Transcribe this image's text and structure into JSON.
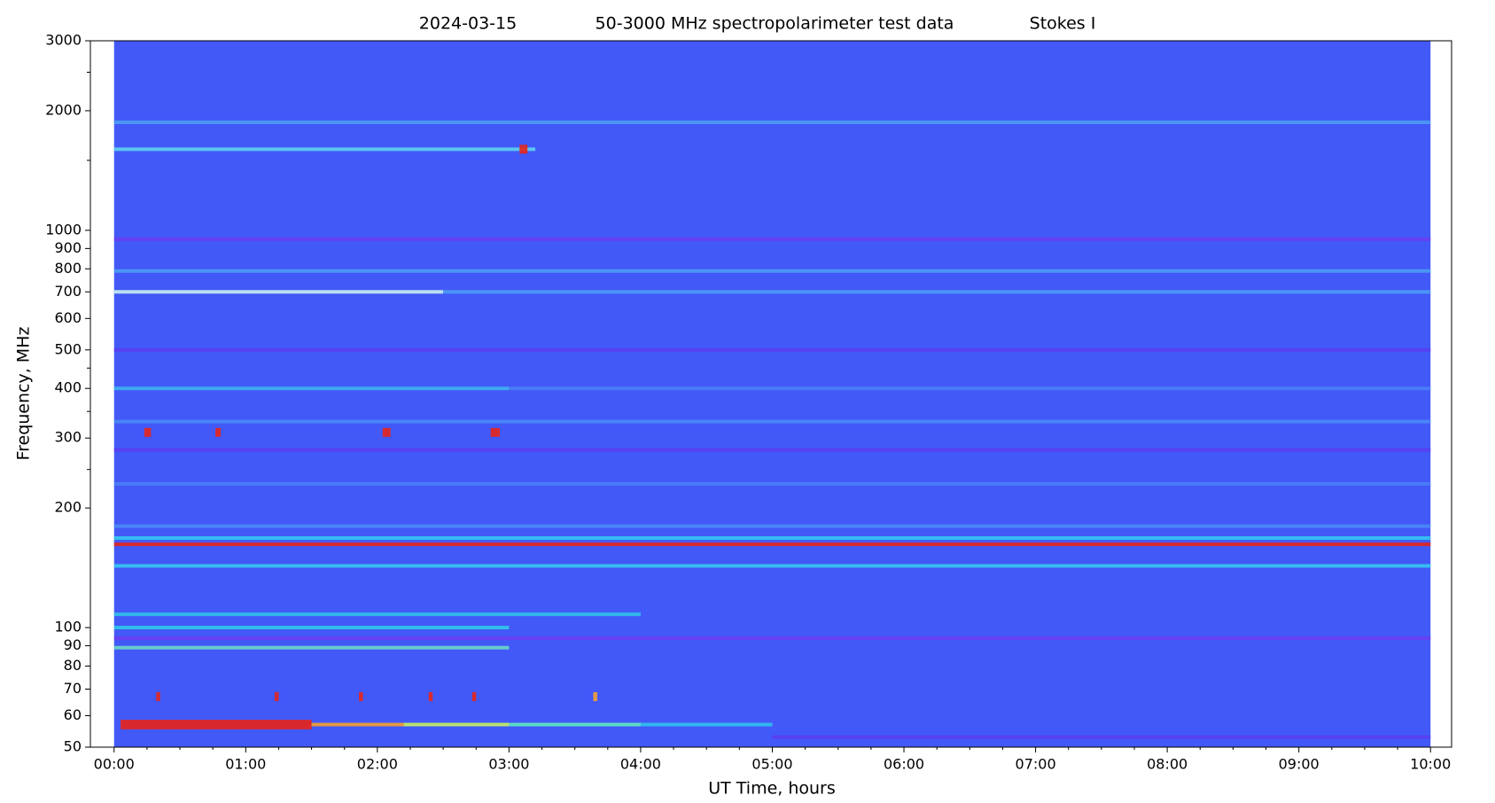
{
  "chart_data": {
    "type": "spectrogram",
    "title": "2024-03-15",
    "subtitle": "50-3000 MHz spectropolarimeter test data",
    "annotation": "Stokes I",
    "x_label": "UT Time, hours",
    "y_label": "Frequency, MHz",
    "xlim": [
      -0.18,
      10.16
    ],
    "xticks": [
      {
        "value": 0,
        "label": "00:00"
      },
      {
        "value": 1,
        "label": "01:00"
      },
      {
        "value": 2,
        "label": "02:00"
      },
      {
        "value": 3,
        "label": "03:00"
      },
      {
        "value": 4,
        "label": "04:00"
      },
      {
        "value": 5,
        "label": "05:00"
      },
      {
        "value": 6,
        "label": "06:00"
      },
      {
        "value": 7,
        "label": "07:00"
      },
      {
        "value": 8,
        "label": "08:00"
      },
      {
        "value": 9,
        "label": "09:00"
      },
      {
        "value": 10,
        "label": "10:00"
      }
    ],
    "ylim": [
      50,
      3000
    ],
    "y_scale": "log",
    "yticks": [
      50,
      60,
      70,
      80,
      90,
      100,
      200,
      300,
      400,
      500,
      600,
      700,
      800,
      900,
      1000,
      2000,
      3000
    ],
    "yminorticks": [
      250,
      350,
      450,
      1500,
      2500
    ],
    "data_range": [
      0,
      10
    ],
    "background_color": "#4259f7",
    "features": [
      {
        "freq": 1870,
        "t0": 0,
        "t1": 10,
        "color": "#4c9cf4"
      },
      {
        "freq": 1600,
        "t0": 0,
        "t1": 3.2,
        "color": "#5fd0f0"
      },
      {
        "freq": 1600,
        "t0": 3.08,
        "t1": 3.14,
        "color": "#e8231a"
      },
      {
        "freq": 950,
        "t0": 0,
        "t1": 10,
        "color": "#6a3ef0"
      },
      {
        "freq": 790,
        "t0": 0,
        "t1": 10,
        "color": "#4c9cf4"
      },
      {
        "freq": 700,
        "t0": 0,
        "t1": 2.5,
        "color": "#c8f0f0"
      },
      {
        "freq": 700,
        "t0": 2.5,
        "t1": 10,
        "color": "#4a9af5"
      },
      {
        "freq": 500,
        "t0": 0,
        "t1": 10,
        "color": "#5a3ef0"
      },
      {
        "freq": 400,
        "t0": 0,
        "t1": 3,
        "color": "#3fb0f0"
      },
      {
        "freq": 400,
        "t0": 3,
        "t1": 10,
        "color": "#4a80f5"
      },
      {
        "freq": 330,
        "t0": 0,
        "t1": 10,
        "color": "#4a88f5"
      },
      {
        "freq": 310,
        "t0": 0.23,
        "t1": 0.28,
        "color": "#e8231a"
      },
      {
        "freq": 310,
        "t0": 0.77,
        "t1": 0.81,
        "color": "#e8231a"
      },
      {
        "freq": 310,
        "t0": 2.04,
        "t1": 2.1,
        "color": "#e8231a"
      },
      {
        "freq": 310,
        "t0": 2.86,
        "t1": 2.93,
        "color": "#e8231a"
      },
      {
        "freq": 280,
        "t0": 0,
        "t1": 10,
        "color": "#5a3ef0"
      },
      {
        "freq": 230,
        "t0": 0,
        "t1": 10,
        "color": "#4a80f5"
      },
      {
        "freq": 180,
        "t0": 0,
        "t1": 10,
        "color": "#4a88f5"
      },
      {
        "freq": 168,
        "t0": 0,
        "t1": 10,
        "color": "#35c8f0"
      },
      {
        "freq": 162,
        "t0": 0,
        "t1": 10,
        "color": "#e8231a"
      },
      {
        "freq": 143,
        "t0": 0,
        "t1": 10,
        "color": "#35c8f0"
      },
      {
        "freq": 108,
        "t0": 0,
        "t1": 4,
        "color": "#30c0e8"
      },
      {
        "freq": 100,
        "t0": 0,
        "t1": 3,
        "color": "#30c8e8"
      },
      {
        "freq": 94,
        "t0": 0,
        "t1": 10,
        "color": "#6a3ef0"
      },
      {
        "freq": 89,
        "t0": 0,
        "t1": 3,
        "color": "#6ad8c8"
      },
      {
        "freq": 67,
        "t0": 0.32,
        "t1": 0.35,
        "color": "#e8231a"
      },
      {
        "freq": 67,
        "t0": 1.22,
        "t1": 1.25,
        "color": "#e8231a"
      },
      {
        "freq": 67,
        "t0": 1.86,
        "t1": 1.89,
        "color": "#e8231a"
      },
      {
        "freq": 67,
        "t0": 2.39,
        "t1": 2.42,
        "color": "#e8231a"
      },
      {
        "freq": 67,
        "t0": 2.72,
        "t1": 2.75,
        "color": "#e8231a"
      },
      {
        "freq": 67,
        "t0": 3.64,
        "t1": 3.67,
        "color": "#f5a030"
      },
      {
        "freq": 58,
        "t0": 0.05,
        "t1": 1.5,
        "color": "#e8231a"
      },
      {
        "freq": 57,
        "t0": 0.05,
        "t1": 1.5,
        "color": "#e8231a"
      },
      {
        "freq": 56,
        "t0": 0.05,
        "t1": 1.5,
        "color": "#e8231a"
      },
      {
        "freq": 57,
        "t0": 1.5,
        "t1": 2.2,
        "color": "#f5a030"
      },
      {
        "freq": 57,
        "t0": 2.2,
        "t1": 3,
        "color": "#c8f060"
      },
      {
        "freq": 57,
        "t0": 3,
        "t1": 4,
        "color": "#60e8c0"
      },
      {
        "freq": 57,
        "t0": 4,
        "t1": 5,
        "color": "#30c0f0"
      },
      {
        "freq": 53,
        "t0": 5,
        "t1": 10,
        "color": "#5a3ef0"
      }
    ]
  }
}
